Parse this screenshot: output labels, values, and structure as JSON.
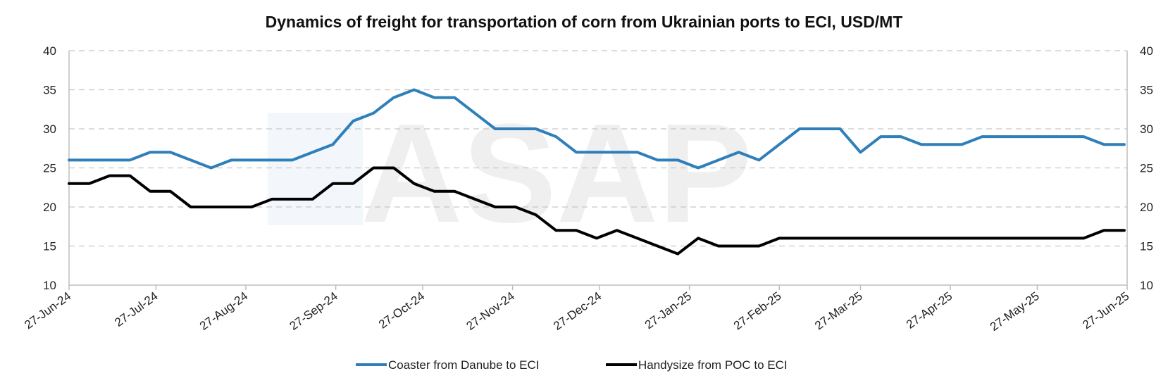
{
  "chart_data": {
    "type": "line",
    "title": "Dynamics of freight for transportation of corn from Ukrainian ports to ECI, USD/MT",
    "xlabel": "",
    "ylabel": "",
    "ylim": [
      10,
      40
    ],
    "yticks": [
      10,
      15,
      20,
      25,
      30,
      35,
      40
    ],
    "secondary_yticks": [
      10,
      15,
      20,
      25,
      30,
      35,
      40
    ],
    "grid": "horizontal dashed",
    "legend_position": "bottom",
    "watermark": "ASAP",
    "x_tick_labels": [
      "27-Jun-24",
      "27-Jul-24",
      "27-Aug-24",
      "27-Sep-24",
      "27-Oct-24",
      "27-Nov-24",
      "27-Dec-24",
      "27-Jan-25",
      "27-Feb-25",
      "27-Mar-25",
      "27-Apr-25",
      "27-May-25",
      "27-Jun-25"
    ],
    "x_tick_dates": [
      "2024-06-27",
      "2024-07-27",
      "2024-08-27",
      "2024-09-27",
      "2024-10-27",
      "2024-11-27",
      "2024-12-27",
      "2025-01-27",
      "2025-02-27",
      "2025-03-27",
      "2025-04-27",
      "2025-05-27",
      "2025-06-27"
    ],
    "x": [
      "2024-06-27",
      "2024-07-04",
      "2024-07-11",
      "2024-07-18",
      "2024-07-25",
      "2024-08-01",
      "2024-08-08",
      "2024-08-15",
      "2024-08-22",
      "2024-08-29",
      "2024-09-05",
      "2024-09-12",
      "2024-09-19",
      "2024-09-26",
      "2024-10-03",
      "2024-10-10",
      "2024-10-17",
      "2024-10-24",
      "2024-10-31",
      "2024-11-07",
      "2024-11-14",
      "2024-11-21",
      "2024-11-28",
      "2024-12-05",
      "2024-12-12",
      "2024-12-19",
      "2024-12-26",
      "2025-01-02",
      "2025-01-09",
      "2025-01-16",
      "2025-01-23",
      "2025-01-30",
      "2025-02-06",
      "2025-02-13",
      "2025-02-20",
      "2025-02-27",
      "2025-03-06",
      "2025-03-13",
      "2025-03-20",
      "2025-03-27",
      "2025-04-03",
      "2025-04-10",
      "2025-04-17",
      "2025-04-24",
      "2025-05-01",
      "2025-05-08",
      "2025-05-15",
      "2025-05-22",
      "2025-05-29",
      "2025-06-05",
      "2025-06-12",
      "2025-06-19",
      "2025-06-26"
    ],
    "series": [
      {
        "name": "Coaster from Danube to ECI",
        "color": "#2e7fba",
        "values": [
          26,
          26,
          26,
          26,
          27,
          27,
          26,
          25,
          26,
          26,
          26,
          26,
          27,
          28,
          31,
          32,
          34,
          35,
          34,
          34,
          32,
          30,
          30,
          30,
          29,
          27,
          27,
          27,
          27,
          26,
          26,
          25,
          26,
          27,
          26,
          28,
          30,
          30,
          30,
          27,
          29,
          29,
          28,
          28,
          28,
          29,
          29,
          29,
          29,
          29,
          29,
          28,
          28
        ]
      },
      {
        "name": "Handysize from POC to ECI",
        "color": "#000000",
        "values": [
          23,
          23,
          24,
          24,
          22,
          22,
          20,
          20,
          20,
          20,
          21,
          21,
          21,
          23,
          23,
          25,
          25,
          23,
          22,
          22,
          21,
          20,
          20,
          19,
          17,
          17,
          16,
          17,
          16,
          15,
          14,
          16,
          15,
          15,
          15,
          16,
          16,
          16,
          16,
          16,
          16,
          16,
          16,
          16,
          16,
          16,
          16,
          16,
          16,
          16,
          16,
          17,
          17
        ]
      }
    ]
  }
}
